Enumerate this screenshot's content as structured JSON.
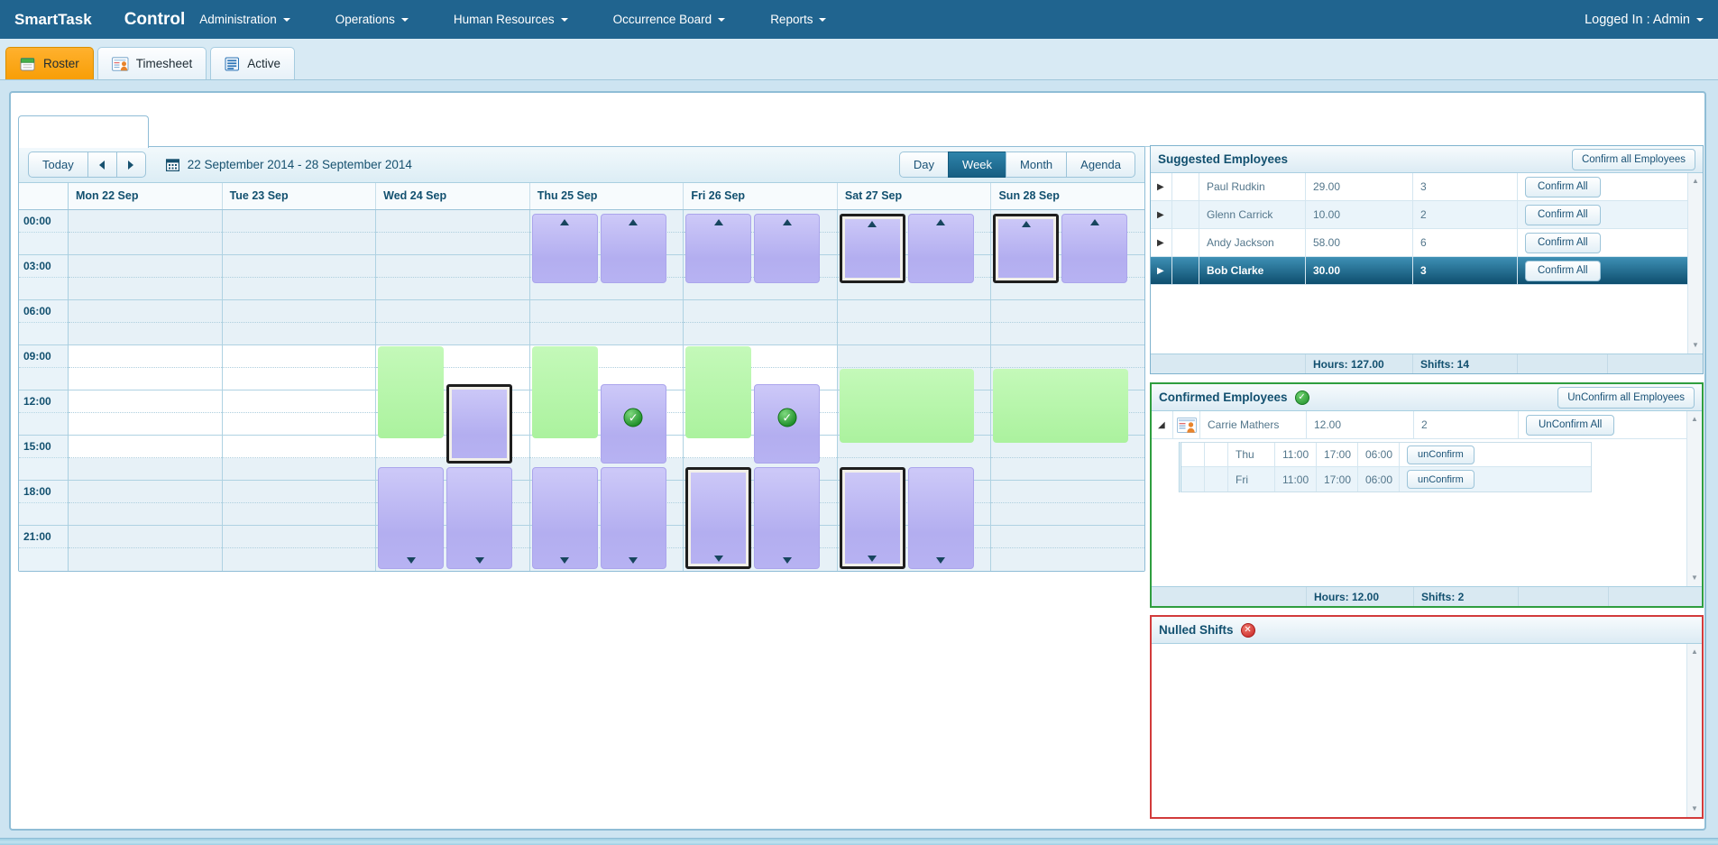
{
  "navbar": {
    "brand": "SmartTask",
    "app_title": "Control",
    "menus": [
      {
        "label": "Administration"
      },
      {
        "label": "Operations"
      },
      {
        "label": "Human Resources"
      },
      {
        "label": "Occurrence Board"
      },
      {
        "label": "Reports"
      }
    ],
    "logged_in": "Logged In : Admin"
  },
  "tabs": [
    {
      "label": "Roster",
      "icon": "roster-calendar-icon",
      "active": true
    },
    {
      "label": "Timesheet",
      "icon": "timesheet-person-icon",
      "active": false
    },
    {
      "label": "Active",
      "icon": "active-list-icon",
      "active": false
    }
  ],
  "scheduler": {
    "today_label": "Today",
    "date_range": "22 September 2014 - 28 September 2014",
    "views": [
      "Day",
      "Week",
      "Month",
      "Agenda"
    ],
    "active_view": "Week",
    "time_labels": [
      "00:00",
      "03:00",
      "06:00",
      "09:00",
      "12:00",
      "15:00",
      "18:00",
      "21:00"
    ],
    "day_headers": [
      "Mon 22 Sep",
      "Tue 23 Sep",
      "Wed 24 Sep",
      "Thu 25 Sep",
      "Fri 26 Sep",
      "Sat 27 Sep",
      "Sun 28 Sep"
    ],
    "events": [
      {
        "day": 3,
        "type": "shift",
        "start": 0.25,
        "end": 4.85,
        "width": "half-left",
        "arrow": "up"
      },
      {
        "day": 3,
        "type": "shift",
        "start": 0.25,
        "end": 4.85,
        "width": "half-right",
        "arrow": "up"
      },
      {
        "day": 4,
        "type": "shift",
        "start": 0.25,
        "end": 4.85,
        "width": "half-left",
        "arrow": "up"
      },
      {
        "day": 4,
        "type": "shift",
        "start": 0.25,
        "end": 4.85,
        "width": "half-right",
        "arrow": "up"
      },
      {
        "day": 5,
        "type": "shift",
        "start": 0.25,
        "end": 4.85,
        "width": "half-left",
        "arrow": "up",
        "selected": true
      },
      {
        "day": 5,
        "type": "shift",
        "start": 0.25,
        "end": 4.85,
        "width": "half-right",
        "arrow": "up"
      },
      {
        "day": 6,
        "type": "shift",
        "start": 0.25,
        "end": 4.85,
        "width": "half-left",
        "arrow": "up",
        "selected": true
      },
      {
        "day": 6,
        "type": "shift",
        "start": 0.25,
        "end": 4.85,
        "width": "half-right",
        "arrow": "up"
      },
      {
        "day": 2,
        "type": "availability",
        "start": 9.05,
        "end": 15.15,
        "width": "half-left"
      },
      {
        "day": 3,
        "type": "availability",
        "start": 9.05,
        "end": 15.15,
        "width": "half-left"
      },
      {
        "day": 4,
        "type": "availability",
        "start": 9.05,
        "end": 15.15,
        "width": "half-left"
      },
      {
        "day": 5,
        "type": "availability",
        "start": 10.55,
        "end": 15.45,
        "width": "full"
      },
      {
        "day": 6,
        "type": "availability",
        "start": 10.55,
        "end": 15.45,
        "width": "full"
      },
      {
        "day": 2,
        "type": "shift",
        "start": 11.55,
        "end": 16.8,
        "width": "half-right",
        "selected": true
      },
      {
        "day": 3,
        "type": "shift",
        "start": 11.55,
        "end": 16.8,
        "width": "half-right",
        "confirmed": true
      },
      {
        "day": 4,
        "type": "shift",
        "start": 11.55,
        "end": 16.8,
        "width": "half-right",
        "confirmed": true
      },
      {
        "day": 2,
        "type": "shift",
        "start": 17.1,
        "end": 23.85,
        "width": "half-left",
        "arrow": "down"
      },
      {
        "day": 2,
        "type": "shift",
        "start": 17.1,
        "end": 23.85,
        "width": "half-right",
        "arrow": "down"
      },
      {
        "day": 3,
        "type": "shift",
        "start": 17.1,
        "end": 23.85,
        "width": "half-left",
        "arrow": "down"
      },
      {
        "day": 3,
        "type": "shift",
        "start": 17.1,
        "end": 23.85,
        "width": "half-right",
        "arrow": "down"
      },
      {
        "day": 4,
        "type": "shift",
        "start": 17.1,
        "end": 23.85,
        "width": "half-left",
        "arrow": "down",
        "selected": true
      },
      {
        "day": 4,
        "type": "shift",
        "start": 17.1,
        "end": 23.85,
        "width": "half-right",
        "arrow": "down"
      },
      {
        "day": 5,
        "type": "shift",
        "start": 17.1,
        "end": 23.85,
        "width": "half-left",
        "arrow": "down",
        "selected": true
      },
      {
        "day": 5,
        "type": "shift",
        "start": 17.1,
        "end": 23.85,
        "width": "half-right",
        "arrow": "down"
      }
    ]
  },
  "suggested_panel": {
    "title": "Suggested Employees",
    "header_button": "Confirm all Employees",
    "row_button": "Confirm All",
    "rows": [
      {
        "name": "Paul Rudkin",
        "hours": "29.00",
        "shifts": "3",
        "selected": false
      },
      {
        "name": "Glenn Carrick",
        "hours": "10.00",
        "shifts": "2",
        "selected": false
      },
      {
        "name": "Andy Jackson",
        "hours": "58.00",
        "shifts": "6",
        "selected": false
      },
      {
        "name": "Bob Clarke",
        "hours": "30.00",
        "shifts": "3",
        "selected": true
      }
    ],
    "footer_hours": "Hours: 127.00",
    "footer_shifts": "Shifts: 14"
  },
  "confirmed_panel": {
    "title": "Confirmed Employees",
    "status_icon": "green-check-icon",
    "header_button": "UnConfirm all Employees",
    "row_button": "UnConfirm All",
    "detail_button": "unConfirm",
    "rows": [
      {
        "name": "Carrie Mathers",
        "hours": "12.00",
        "shifts": "2",
        "expanded": true,
        "icon": "employee-card-icon",
        "details": [
          {
            "day": "Thu",
            "start": "11:00",
            "end": "17:00",
            "hours": "06:00"
          },
          {
            "day": "Fri",
            "start": "11:00",
            "end": "17:00",
            "hours": "06:00"
          }
        ]
      }
    ],
    "footer_hours": "Hours: 12.00",
    "footer_shifts": "Shifts: 2"
  },
  "nulled_panel": {
    "title": "Nulled Shifts",
    "status_icon": "red-x-icon"
  }
}
